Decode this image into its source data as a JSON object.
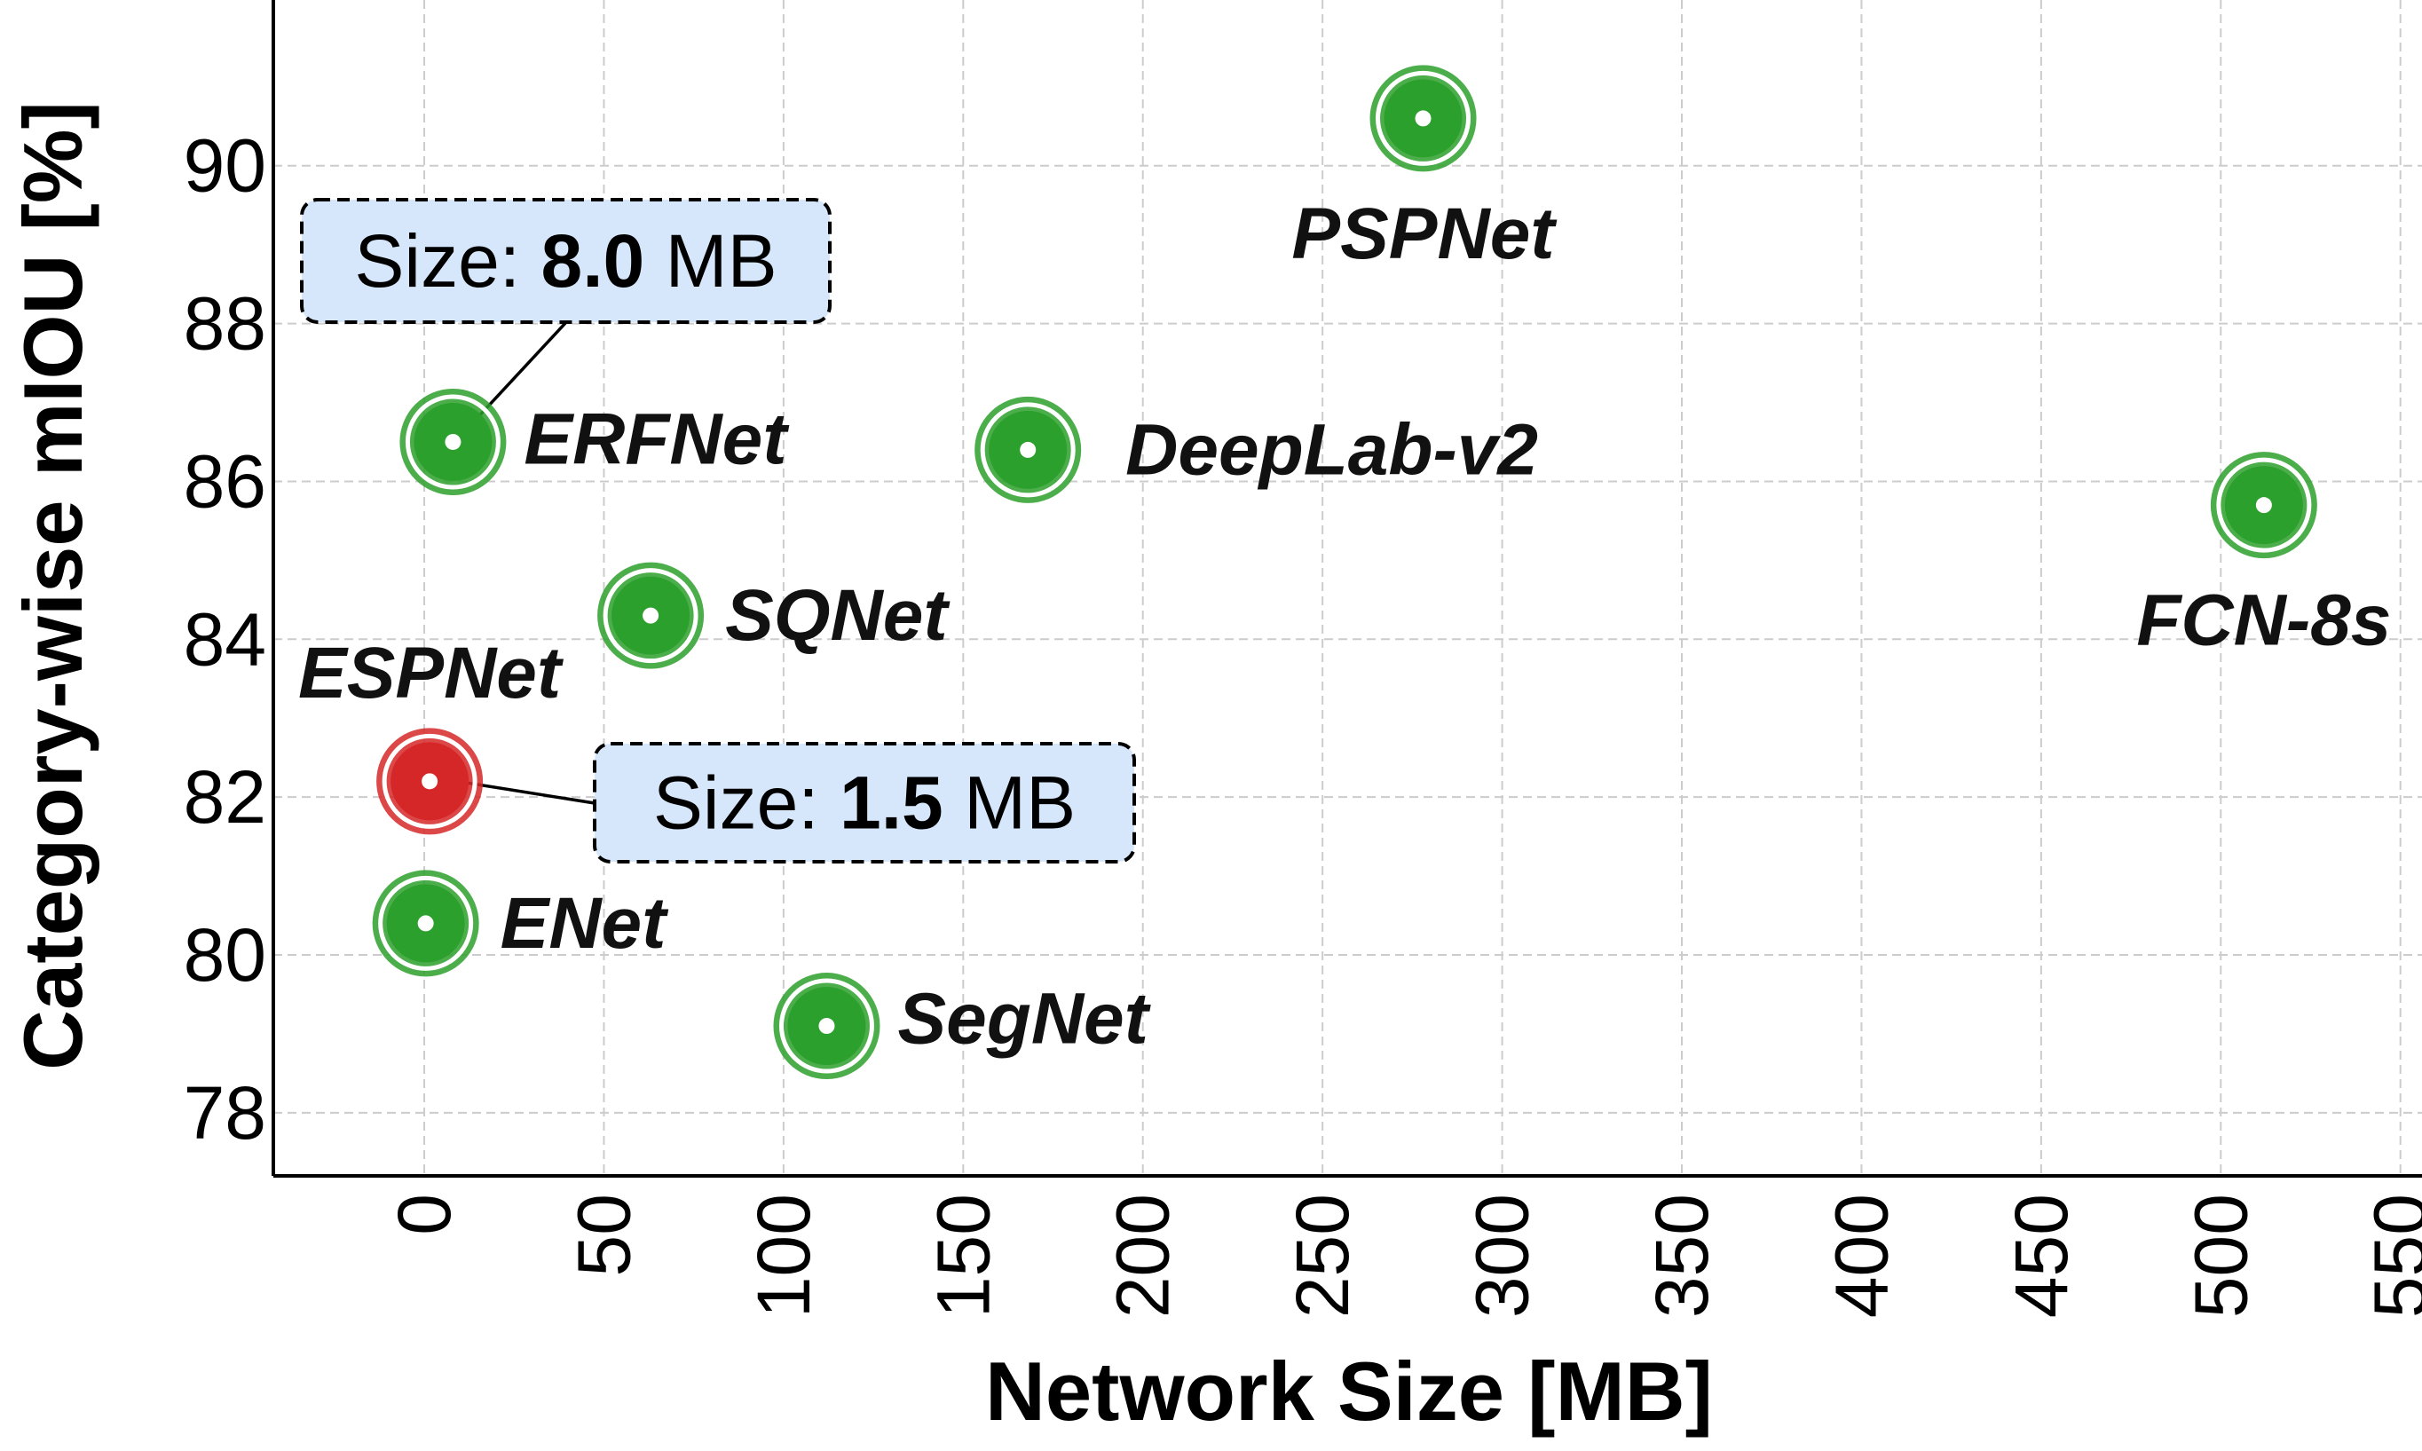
{
  "chart_data": {
    "type": "scatter",
    "xlabel": "Network Size [MB]",
    "ylabel": "Category-wise mIOU [%]",
    "xlim": [
      -42,
      556
    ],
    "ylim": [
      77.2,
      92.1
    ],
    "xticks": [
      0,
      50,
      100,
      150,
      200,
      250,
      300,
      350,
      400,
      450,
      500,
      550
    ],
    "yticks": [
      78,
      80,
      82,
      84,
      86,
      88,
      90
    ],
    "grid": true,
    "points": [
      {
        "name": "ESPNet",
        "x": 1.5,
        "y": 82.2,
        "color": "#d62728",
        "highlight": true
      },
      {
        "name": "ENet",
        "x": 0.4,
        "y": 80.4,
        "color": "#2ca02c"
      },
      {
        "name": "ERFNet",
        "x": 8.0,
        "y": 86.5,
        "color": "#2ca02c"
      },
      {
        "name": "SQNet",
        "x": 63,
        "y": 84.3,
        "color": "#2ca02c"
      },
      {
        "name": "SegNet",
        "x": 112,
        "y": 79.1,
        "color": "#2ca02c"
      },
      {
        "name": "DeepLab-v2",
        "x": 168,
        "y": 86.4,
        "color": "#2ca02c"
      },
      {
        "name": "PSPNet",
        "x": 278,
        "y": 90.6,
        "color": "#2ca02c"
      },
      {
        "name": "FCN-8s",
        "x": 512,
        "y": 85.7,
        "color": "#2ca02c"
      }
    ],
    "annotations": [
      {
        "target": "ERFNet",
        "prefix": "Size: ",
        "value": "8.0",
        "suffix": " MB"
      },
      {
        "target": "ESPNet",
        "prefix": "Size: ",
        "value": "1.5",
        "suffix": " MB"
      }
    ]
  }
}
